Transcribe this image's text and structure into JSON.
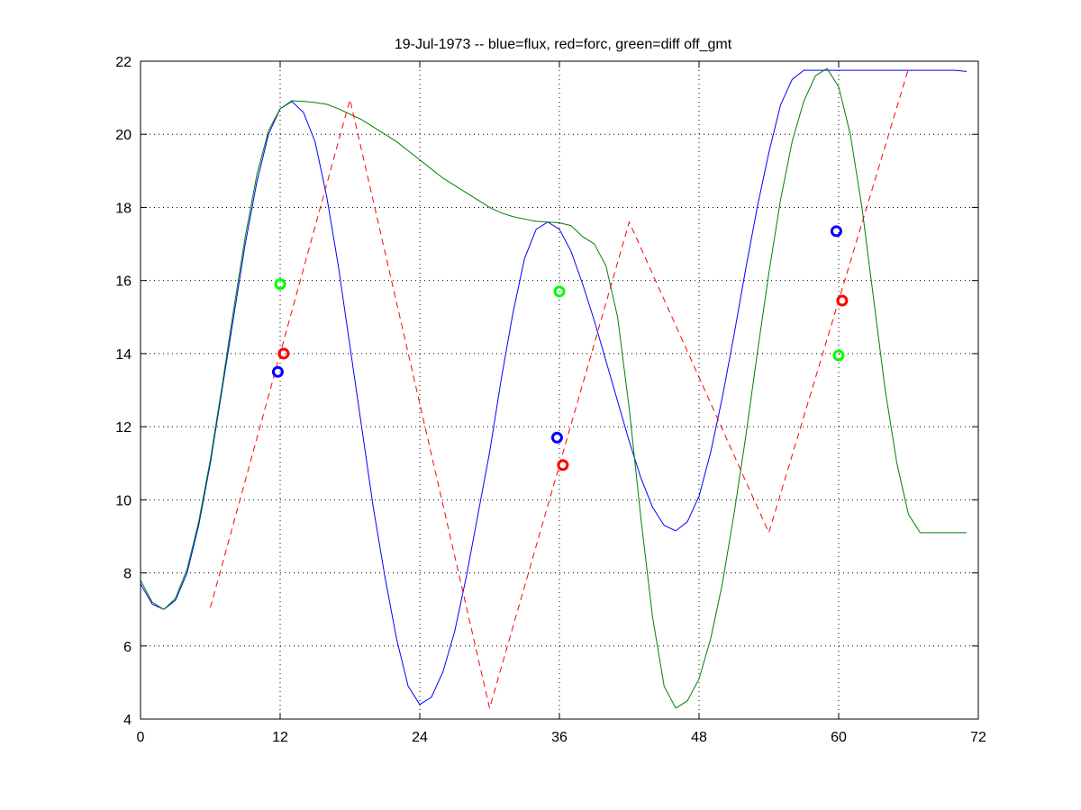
{
  "chart_data": {
    "type": "line",
    "title": "19-Jul-1973 -- blue=flux, red=forc, green=diff off_gmt",
    "xlabel": "",
    "ylabel": "",
    "xlim": [
      0,
      72
    ],
    "ylim": [
      4,
      22
    ],
    "xticks": [
      0,
      12,
      24,
      36,
      48,
      60,
      72
    ],
    "yticks": [
      4,
      6,
      8,
      10,
      12,
      14,
      16,
      18,
      20,
      22
    ],
    "grid": true,
    "series": [
      {
        "color": "#0000ff",
        "style": "solid",
        "x": [
          0,
          1,
          2,
          3,
          4,
          5,
          6,
          7,
          8,
          9,
          10,
          11,
          12,
          13,
          14,
          15,
          16,
          17,
          18,
          19,
          20,
          21,
          22,
          23,
          24,
          25,
          26,
          27,
          28,
          29,
          30,
          31,
          32,
          33,
          34,
          35,
          36,
          37,
          38,
          39,
          40,
          41,
          42,
          43,
          44,
          45,
          46,
          47,
          48,
          49,
          50,
          51,
          52,
          53,
          54,
          55,
          56,
          57,
          58,
          59,
          60,
          61,
          62,
          63,
          64,
          65,
          66,
          67,
          68,
          69,
          70,
          71
        ],
        "y": [
          7.7,
          7.15,
          7.0,
          7.25,
          8.0,
          9.3,
          11.0,
          13.0,
          15.0,
          17.0,
          18.7,
          20.0,
          20.7,
          20.9,
          20.6,
          19.8,
          18.3,
          16.4,
          14.2,
          12.0,
          9.8,
          7.9,
          6.2,
          4.9,
          4.4,
          4.6,
          5.3,
          6.4,
          7.9,
          9.6,
          11.3,
          13.3,
          15.1,
          16.6,
          17.4,
          17.6,
          17.4,
          16.8,
          15.9,
          14.9,
          13.8,
          12.7,
          11.6,
          10.6,
          9.8,
          9.3,
          9.15,
          9.4,
          10.1,
          11.3,
          12.8,
          14.5,
          16.3,
          18.0,
          19.5,
          20.8,
          21.5,
          21.75,
          21.75,
          21.75,
          21.75,
          21.75,
          21.75,
          21.75,
          21.75,
          21.75,
          21.75,
          21.75,
          21.75,
          21.75,
          21.75,
          21.72
        ]
      },
      {
        "color": "#008000",
        "style": "solid",
        "x": [
          0,
          1,
          2,
          3,
          4,
          5,
          6,
          7,
          8,
          9,
          10,
          11,
          12,
          13,
          14,
          15,
          16,
          17,
          18,
          19,
          20,
          21,
          22,
          23,
          24,
          25,
          26,
          27,
          28,
          29,
          30,
          31,
          32,
          33,
          34,
          35,
          36,
          37,
          38,
          39,
          40,
          41,
          42,
          43,
          44,
          45,
          46,
          47,
          48,
          49,
          50,
          51,
          52,
          53,
          54,
          55,
          56,
          57,
          58,
          59,
          60,
          61,
          62,
          63,
          64,
          65,
          66,
          67,
          68,
          69,
          70,
          71
        ],
        "y": [
          7.8,
          7.2,
          7.0,
          7.3,
          8.1,
          9.4,
          11.1,
          13.1,
          15.2,
          17.2,
          18.9,
          20.1,
          20.7,
          20.92,
          20.9,
          20.87,
          20.82,
          20.7,
          20.55,
          20.4,
          20.2,
          20.0,
          19.8,
          19.55,
          19.3,
          19.05,
          18.8,
          18.6,
          18.4,
          18.2,
          18.0,
          17.85,
          17.75,
          17.68,
          17.62,
          17.6,
          17.58,
          17.5,
          17.2,
          17.0,
          16.4,
          15.0,
          12.5,
          9.5,
          6.8,
          4.9,
          4.3,
          4.5,
          5.1,
          6.2,
          7.7,
          9.6,
          11.7,
          14.0,
          16.2,
          18.2,
          19.8,
          20.9,
          21.6,
          21.8,
          21.3,
          20.0,
          18.0,
          15.5,
          13.0,
          11.0,
          9.6,
          9.1,
          9.1,
          9.1,
          9.1,
          9.1
        ]
      },
      {
        "color": "#ff0000",
        "style": "dashed",
        "x": [
          6,
          18,
          30,
          42,
          54,
          66
        ],
        "y": [
          7.05,
          20.95,
          4.3,
          17.6,
          9.1,
          21.8
        ]
      }
    ],
    "markers": [
      {
        "color": "#0000ff",
        "x": [
          11.8,
          35.8,
          59.8
        ],
        "y": [
          13.5,
          11.7,
          17.35
        ]
      },
      {
        "color": "#ff0000",
        "x": [
          12.3,
          36.3,
          60.3
        ],
        "y": [
          14.0,
          10.95,
          15.45
        ]
      },
      {
        "color": "#00ff00",
        "x": [
          12.0,
          36.0,
          60.0
        ],
        "y": [
          15.9,
          15.7,
          13.95
        ]
      }
    ]
  }
}
